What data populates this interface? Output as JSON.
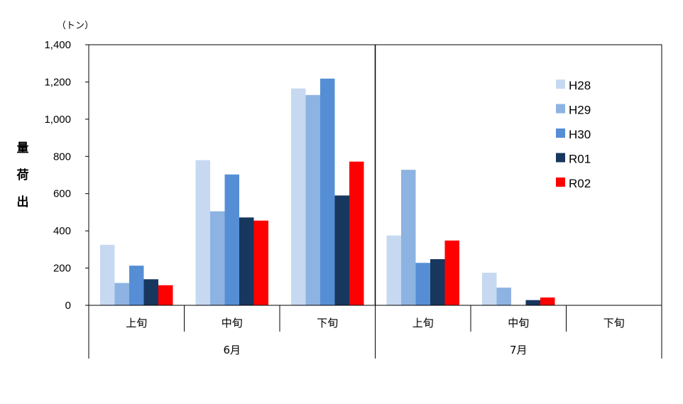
{
  "chart_data": {
    "type": "bar",
    "unit_label": "（トン）",
    "ylabel": "出荷量",
    "ylim": [
      0,
      1400
    ],
    "ytick_step": 200,
    "y_ticks": [
      "0",
      "200",
      "400",
      "600",
      "800",
      "1,000",
      "1,200",
      "1,400"
    ],
    "grid": false,
    "legend_position": "right",
    "categories": [
      "上旬",
      "中旬",
      "下旬",
      "上旬",
      "中旬",
      "下旬"
    ],
    "groups": [
      {
        "label": "6月",
        "span": 3
      },
      {
        "label": "7月",
        "span": 3
      }
    ],
    "series": [
      {
        "name": "H28",
        "color": "#c6d9f1",
        "values": [
          325,
          780,
          1165,
          375,
          175,
          0
        ]
      },
      {
        "name": "H29",
        "color": "#8db3e2",
        "values": [
          120,
          505,
          1130,
          728,
          95,
          0
        ]
      },
      {
        "name": "H30",
        "color": "#558ed5",
        "values": [
          213,
          703,
          1218,
          228,
          0,
          0
        ]
      },
      {
        "name": "R01",
        "color": "#17375e",
        "values": [
          140,
          472,
          590,
          248,
          28,
          0
        ]
      },
      {
        "name": "R02",
        "color": "#ff0000",
        "values": [
          108,
          455,
          772,
          348,
          42,
          0
        ]
      }
    ]
  }
}
